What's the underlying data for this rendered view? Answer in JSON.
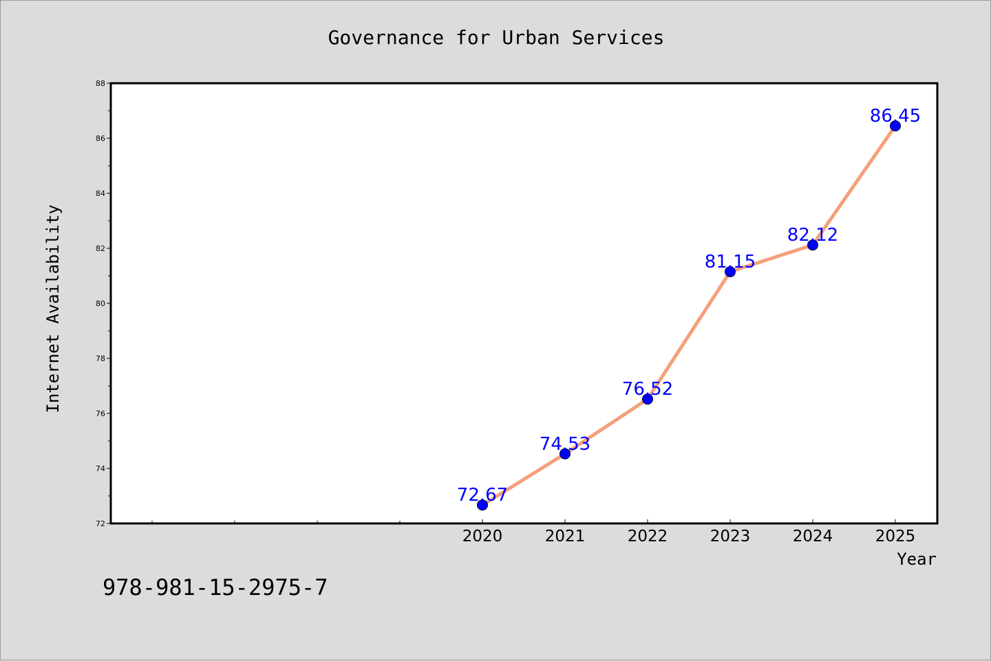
{
  "chart_data": {
    "type": "line",
    "title": "Governance for Urban Services",
    "xlabel": "Year",
    "ylabel": "Internet Availability",
    "x": [
      "2020",
      "2021",
      "2022",
      "2023",
      "2024",
      "2025"
    ],
    "series": [
      {
        "values": [
          72.67,
          74.53,
          76.52,
          81.15,
          82.12,
          86.45
        ],
        "line_color": "#f4a07a",
        "marker_color": "#0000ff"
      }
    ],
    "data_labels": [
      "72.67",
      "74.53",
      "76.52",
      "81.15",
      "82.12",
      "86.45"
    ],
    "ylim": [
      72,
      88
    ],
    "yticks": [
      72,
      74,
      76,
      78,
      80,
      82,
      84,
      86,
      88
    ],
    "grid": false,
    "legend": "none"
  },
  "footnote": "978-981-15-2975-7",
  "colors": {
    "background": "#dcdcdc",
    "plot_background": "#ffffff",
    "label_color": "#0000ff"
  }
}
